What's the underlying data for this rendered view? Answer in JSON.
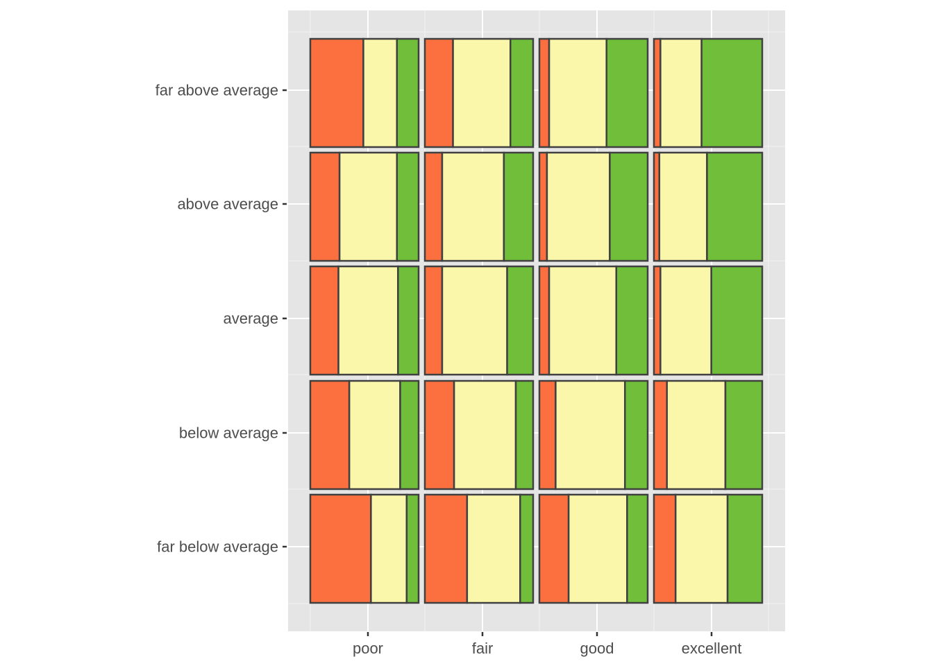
{
  "chart_data": {
    "type": "mosaic",
    "title": "",
    "xlabel": "",
    "ylabel": "",
    "x_categories": [
      "poor",
      "fair",
      "good",
      "excellent"
    ],
    "y_categories": [
      "far below average",
      "below average",
      "average",
      "above average",
      "far above average"
    ],
    "fill_colors": [
      "#FC7040",
      "#FAF7AA",
      "#71BE3A"
    ],
    "background": "#E5E5E5",
    "grid": true,
    "legend": "none",
    "cells": [
      {
        "x": "poor",
        "y": "far below average",
        "proportions": [
          0.56,
          0.33,
          0.11
        ]
      },
      {
        "x": "poor",
        "y": "below average",
        "proportions": [
          0.36,
          0.47,
          0.17
        ]
      },
      {
        "x": "poor",
        "y": "average",
        "proportions": [
          0.26,
          0.55,
          0.19
        ]
      },
      {
        "x": "poor",
        "y": "above average",
        "proportions": [
          0.27,
          0.53,
          0.2
        ]
      },
      {
        "x": "poor",
        "y": "far above average",
        "proportions": [
          0.49,
          0.31,
          0.2
        ]
      },
      {
        "x": "fair",
        "y": "far below average",
        "proportions": [
          0.39,
          0.49,
          0.12
        ]
      },
      {
        "x": "fair",
        "y": "below average",
        "proportions": [
          0.27,
          0.57,
          0.16
        ]
      },
      {
        "x": "fair",
        "y": "average",
        "proportions": [
          0.16,
          0.6,
          0.24
        ]
      },
      {
        "x": "fair",
        "y": "above average",
        "proportions": [
          0.16,
          0.57,
          0.27
        ]
      },
      {
        "x": "fair",
        "y": "far above average",
        "proportions": [
          0.26,
          0.53,
          0.21
        ]
      },
      {
        "x": "good",
        "y": "far below average",
        "proportions": [
          0.27,
          0.54,
          0.19
        ]
      },
      {
        "x": "good",
        "y": "below average",
        "proportions": [
          0.15,
          0.64,
          0.21
        ]
      },
      {
        "x": "good",
        "y": "average",
        "proportions": [
          0.09,
          0.62,
          0.29
        ]
      },
      {
        "x": "good",
        "y": "above average",
        "proportions": [
          0.07,
          0.58,
          0.35
        ]
      },
      {
        "x": "good",
        "y": "far above average",
        "proportions": [
          0.09,
          0.53,
          0.38
        ]
      },
      {
        "x": "excellent",
        "y": "far below average",
        "proportions": [
          0.2,
          0.48,
          0.32
        ]
      },
      {
        "x": "excellent",
        "y": "below average",
        "proportions": [
          0.12,
          0.54,
          0.34
        ]
      },
      {
        "x": "excellent",
        "y": "average",
        "proportions": [
          0.06,
          0.47,
          0.47
        ]
      },
      {
        "x": "excellent",
        "y": "above average",
        "proportions": [
          0.05,
          0.44,
          0.51
        ]
      },
      {
        "x": "excellent",
        "y": "far above average",
        "proportions": [
          0.06,
          0.38,
          0.56
        ]
      }
    ]
  }
}
